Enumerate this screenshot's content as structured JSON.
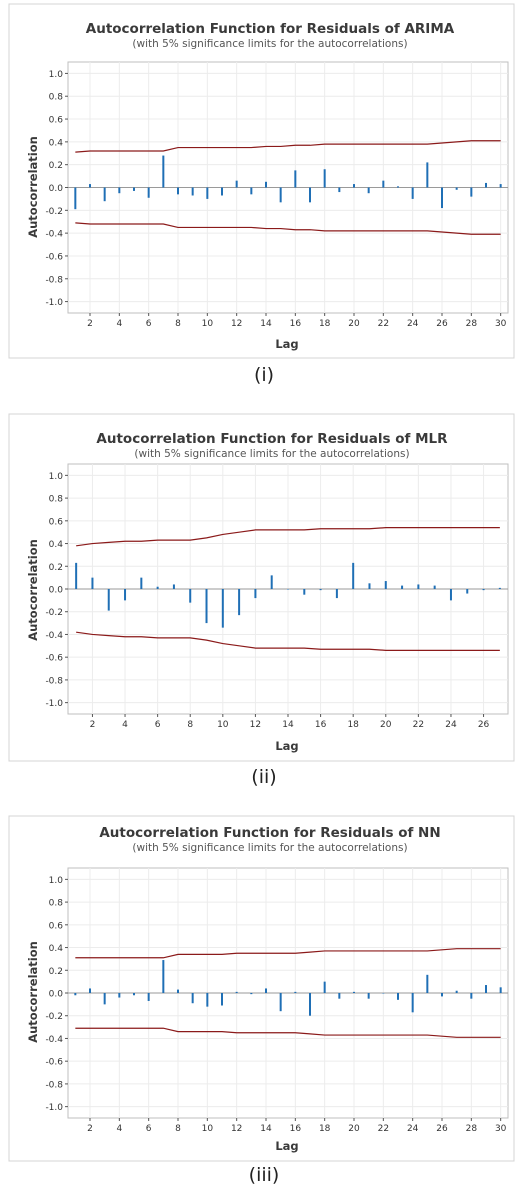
{
  "chart_data": [
    {
      "type": "bar",
      "title": "Autocorrelation Function for Residuals of ARIMA",
      "subtitle": "(with 5% significance limits for the autocorrelations)",
      "xlabel": "Lag",
      "ylabel": "Autocorrelation",
      "caption": "(i)",
      "xlim": [
        0.5,
        30.5
      ],
      "ylim": [
        -1.1,
        1.1
      ],
      "xticks": [
        "2",
        "4",
        "6",
        "8",
        "10",
        "12",
        "14",
        "16",
        "18",
        "20",
        "22",
        "24",
        "26",
        "28",
        "30"
      ],
      "yticks": [
        "1.0",
        "0.8",
        "0.6",
        "0.4",
        "0.2",
        "0.0",
        "-0.2",
        "-0.4",
        "-0.6",
        "-0.8",
        "-1.0"
      ],
      "lags": [
        1,
        2,
        3,
        4,
        5,
        6,
        7,
        8,
        9,
        10,
        11,
        12,
        13,
        14,
        15,
        16,
        17,
        18,
        19,
        20,
        21,
        22,
        23,
        24,
        25,
        26,
        27,
        28,
        29,
        30
      ],
      "values": [
        -0.19,
        0.03,
        -0.12,
        -0.05,
        -0.03,
        -0.09,
        0.28,
        -0.06,
        -0.07,
        -0.1,
        -0.07,
        0.06,
        -0.06,
        0.05,
        -0.13,
        0.15,
        -0.13,
        0.16,
        -0.04,
        0.03,
        -0.05,
        0.06,
        0.01,
        -0.1,
        0.22,
        -0.18,
        -0.02,
        -0.08,
        0.04,
        0.03
      ],
      "upper_limit": [
        0.31,
        0.32,
        0.32,
        0.32,
        0.32,
        0.32,
        0.32,
        0.35,
        0.35,
        0.35,
        0.35,
        0.35,
        0.35,
        0.36,
        0.36,
        0.37,
        0.37,
        0.38,
        0.38,
        0.38,
        0.38,
        0.38,
        0.38,
        0.38,
        0.38,
        0.39,
        0.4,
        0.41,
        0.41,
        0.41
      ],
      "lower_limit": [
        -0.31,
        -0.32,
        -0.32,
        -0.32,
        -0.32,
        -0.32,
        -0.32,
        -0.35,
        -0.35,
        -0.35,
        -0.35,
        -0.35,
        -0.35,
        -0.36,
        -0.36,
        -0.37,
        -0.37,
        -0.38,
        -0.38,
        -0.38,
        -0.38,
        -0.38,
        -0.38,
        -0.38,
        -0.38,
        -0.39,
        -0.4,
        -0.41,
        -0.41,
        -0.41
      ],
      "grid": true,
      "bar_color": "#1f6fb5",
      "limit_color": "#8b1a1a"
    },
    {
      "type": "bar",
      "title": "Autocorrelation Function for Residuals of MLR",
      "subtitle": "(with 5% significance limits for the autocorrelations)",
      "xlabel": "Lag",
      "ylabel": "Autocorrelation",
      "caption": "(ii)",
      "xlim": [
        0.5,
        27.5
      ],
      "ylim": [
        -1.1,
        1.1
      ],
      "xticks": [
        "2",
        "4",
        "6",
        "8",
        "10",
        "12",
        "14",
        "16",
        "18",
        "20",
        "22",
        "24",
        "26"
      ],
      "yticks": [
        "1.0",
        "0.8",
        "0.6",
        "0.4",
        "0.2",
        "0.0",
        "-0.2",
        "-0.4",
        "-0.6",
        "-0.8",
        "-1.0"
      ],
      "lags": [
        1,
        2,
        3,
        4,
        5,
        6,
        7,
        8,
        9,
        10,
        11,
        12,
        13,
        14,
        15,
        16,
        17,
        18,
        19,
        20,
        21,
        22,
        23,
        24,
        25,
        26,
        27
      ],
      "values": [
        0.23,
        0.1,
        -0.19,
        -0.1,
        0.1,
        0.02,
        0.04,
        -0.12,
        -0.3,
        -0.34,
        -0.23,
        -0.08,
        0.12,
        0.0,
        -0.05,
        -0.01,
        -0.08,
        0.23,
        0.05,
        0.07,
        0.03,
        0.04,
        0.03,
        -0.1,
        -0.04,
        -0.01,
        0.01
      ],
      "upper_limit": [
        0.38,
        0.4,
        0.41,
        0.42,
        0.42,
        0.43,
        0.43,
        0.43,
        0.45,
        0.48,
        0.5,
        0.52,
        0.52,
        0.52,
        0.52,
        0.53,
        0.53,
        0.53,
        0.53,
        0.54,
        0.54,
        0.54,
        0.54,
        0.54,
        0.54,
        0.54,
        0.54
      ],
      "lower_limit": [
        -0.38,
        -0.4,
        -0.41,
        -0.42,
        -0.42,
        -0.43,
        -0.43,
        -0.43,
        -0.45,
        -0.48,
        -0.5,
        -0.52,
        -0.52,
        -0.52,
        -0.52,
        -0.53,
        -0.53,
        -0.53,
        -0.53,
        -0.54,
        -0.54,
        -0.54,
        -0.54,
        -0.54,
        -0.54,
        -0.54,
        -0.54
      ],
      "grid": true,
      "bar_color": "#1f6fb5",
      "limit_color": "#8b1a1a"
    },
    {
      "type": "bar",
      "title": "Autocorrelation Function for Residuals of NN",
      "subtitle": "(with 5% significance limits for the autocorrelations)",
      "xlabel": "Lag",
      "ylabel": "Autocorrelation",
      "caption": "(iii)",
      "xlim": [
        0.5,
        30.5
      ],
      "ylim": [
        -1.1,
        1.1
      ],
      "xticks": [
        "2",
        "4",
        "6",
        "8",
        "10",
        "12",
        "14",
        "16",
        "18",
        "20",
        "22",
        "24",
        "26",
        "28",
        "30"
      ],
      "yticks": [
        "1.0",
        "0.8",
        "0.6",
        "0.4",
        "0.2",
        "0.0",
        "-0.2",
        "-0.4",
        "-0.6",
        "-0.8",
        "-1.0"
      ],
      "lags": [
        1,
        2,
        3,
        4,
        5,
        6,
        7,
        8,
        9,
        10,
        11,
        12,
        13,
        14,
        15,
        16,
        17,
        18,
        19,
        20,
        21,
        22,
        23,
        24,
        25,
        26,
        27,
        28,
        29,
        30
      ],
      "values": [
        -0.02,
        0.04,
        -0.1,
        -0.04,
        -0.02,
        -0.07,
        0.29,
        0.03,
        -0.09,
        -0.12,
        -0.11,
        0.01,
        -0.01,
        0.04,
        -0.16,
        0.01,
        -0.2,
        0.1,
        -0.05,
        0.01,
        -0.05,
        0.0,
        -0.06,
        -0.17,
        0.16,
        -0.03,
        0.02,
        -0.05,
        0.07,
        0.05
      ],
      "upper_limit": [
        0.31,
        0.31,
        0.31,
        0.31,
        0.31,
        0.31,
        0.31,
        0.34,
        0.34,
        0.34,
        0.34,
        0.35,
        0.35,
        0.35,
        0.35,
        0.35,
        0.36,
        0.37,
        0.37,
        0.37,
        0.37,
        0.37,
        0.37,
        0.37,
        0.37,
        0.38,
        0.39,
        0.39,
        0.39,
        0.39
      ],
      "lower_limit": [
        -0.31,
        -0.31,
        -0.31,
        -0.31,
        -0.31,
        -0.31,
        -0.31,
        -0.34,
        -0.34,
        -0.34,
        -0.34,
        -0.35,
        -0.35,
        -0.35,
        -0.35,
        -0.35,
        -0.36,
        -0.37,
        -0.37,
        -0.37,
        -0.37,
        -0.37,
        -0.37,
        -0.37,
        -0.37,
        -0.38,
        -0.39,
        -0.39,
        -0.39,
        -0.39
      ],
      "grid": true,
      "bar_color": "#1f6fb5",
      "limit_color": "#8b1a1a"
    }
  ]
}
